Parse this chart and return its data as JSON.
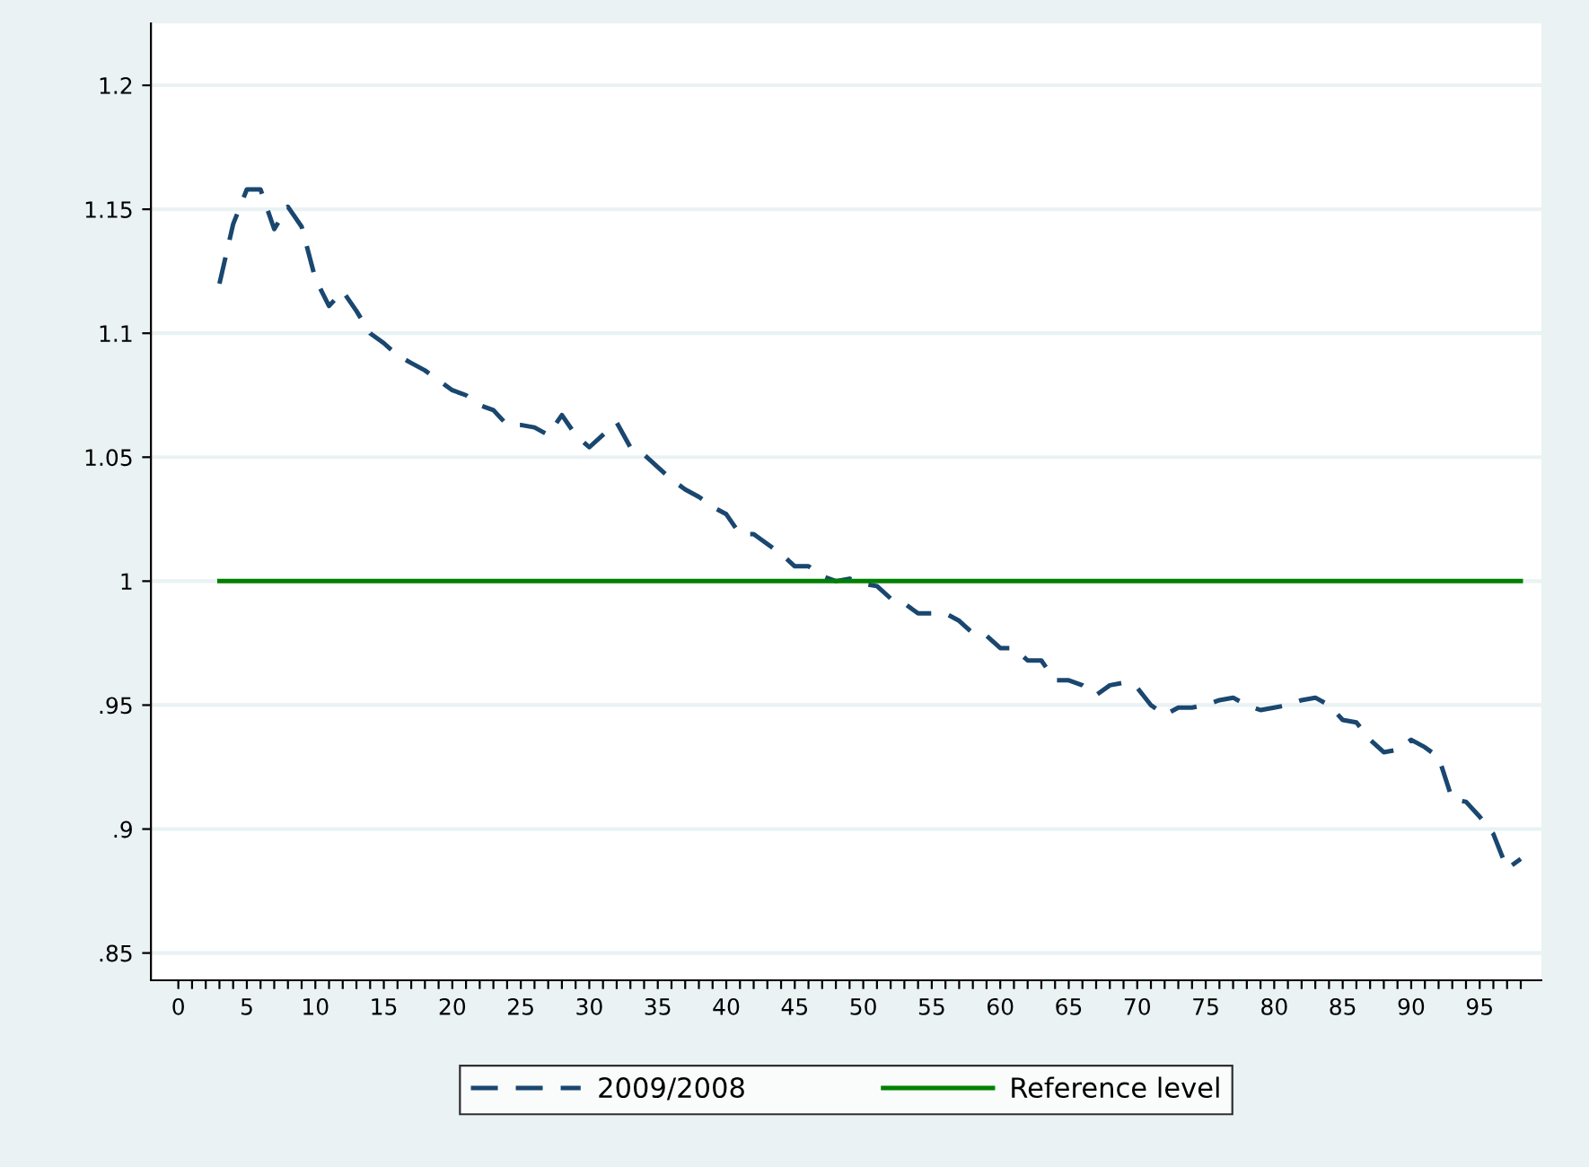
{
  "chart_data": {
    "type": "line",
    "x": [
      3,
      4,
      5,
      6,
      7,
      8,
      9,
      10,
      11,
      12,
      13,
      14,
      15,
      16,
      17,
      18,
      19,
      20,
      21,
      22,
      23,
      24,
      25,
      26,
      27,
      28,
      29,
      30,
      31,
      32,
      33,
      34,
      35,
      36,
      37,
      38,
      39,
      40,
      41,
      42,
      43,
      44,
      45,
      46,
      47,
      48,
      49,
      50,
      51,
      52,
      53,
      54,
      55,
      56,
      57,
      58,
      59,
      60,
      61,
      62,
      63,
      64,
      65,
      66,
      67,
      68,
      69,
      70,
      71,
      72,
      73,
      74,
      75,
      76,
      77,
      78,
      79,
      80,
      81,
      82,
      83,
      84,
      85,
      86,
      87,
      88,
      89,
      90,
      91,
      92,
      93,
      94,
      95,
      96,
      97,
      98
    ],
    "series": [
      {
        "name": "2009/2008",
        "color": "#1a476f",
        "line_style": "dashed",
        "values": [
          1.12,
          1.144,
          1.158,
          1.158,
          1.142,
          1.151,
          1.143,
          1.122,
          1.111,
          1.117,
          1.109,
          1.1,
          1.096,
          1.091,
          1.088,
          1.085,
          1.081,
          1.077,
          1.075,
          1.071,
          1.069,
          1.063,
          1.063,
          1.062,
          1.059,
          1.067,
          1.059,
          1.054,
          1.059,
          1.064,
          1.054,
          1.051,
          1.046,
          1.041,
          1.037,
          1.034,
          1.03,
          1.027,
          1.019,
          1.019,
          1.015,
          1.011,
          1.006,
          1.006,
          1.002,
          1.0,
          1.001,
          0.999,
          0.998,
          0.993,
          0.991,
          0.987,
          0.987,
          0.987,
          0.984,
          0.979,
          0.978,
          0.973,
          0.973,
          0.968,
          0.968,
          0.96,
          0.96,
          0.958,
          0.954,
          0.958,
          0.959,
          0.957,
          0.95,
          0.946,
          0.949,
          0.949,
          0.95,
          0.952,
          0.953,
          0.95,
          0.948,
          0.949,
          0.95,
          0.952,
          0.953,
          0.95,
          0.944,
          0.943,
          0.936,
          0.931,
          0.932,
          0.936,
          0.933,
          0.929,
          0.912,
          0.911,
          0.905,
          0.898,
          0.884,
          0.888
        ]
      },
      {
        "name": "Reference level",
        "color": "#008000",
        "line_style": "solid",
        "values": [
          1,
          1,
          1,
          1,
          1,
          1,
          1,
          1,
          1,
          1,
          1,
          1,
          1,
          1,
          1,
          1,
          1,
          1,
          1,
          1,
          1,
          1,
          1,
          1,
          1,
          1,
          1,
          1,
          1,
          1,
          1,
          1,
          1,
          1,
          1,
          1,
          1,
          1,
          1,
          1,
          1,
          1,
          1,
          1,
          1,
          1,
          1,
          1,
          1,
          1,
          1,
          1,
          1,
          1,
          1,
          1,
          1,
          1,
          1,
          1,
          1,
          1,
          1,
          1,
          1,
          1,
          1,
          1,
          1,
          1,
          1,
          1,
          1,
          1,
          1,
          1,
          1,
          1,
          1,
          1,
          1,
          1,
          1,
          1,
          1,
          1,
          1,
          1,
          1,
          1,
          1,
          1,
          1,
          1,
          1,
          1
        ]
      }
    ],
    "xlim": [
      -2,
      99.5
    ],
    "xticks": [
      0,
      {
        "value": 1,
        "label": null
      },
      {
        "value": 2,
        "label": null
      },
      {
        "value": 3,
        "label": null
      },
      {
        "value": 4,
        "label": null
      },
      5,
      {
        "value": 6,
        "label": null
      },
      {
        "value": 7,
        "label": null
      },
      {
        "value": 8,
        "label": null
      },
      {
        "value": 9,
        "label": null
      },
      10,
      {
        "value": 11,
        "label": null
      },
      {
        "value": 12,
        "label": null
      },
      {
        "value": 13,
        "label": null
      },
      {
        "value": 14,
        "label": null
      },
      15,
      {
        "value": 16,
        "label": null
      },
      {
        "value": 17,
        "label": null
      },
      {
        "value": 18,
        "label": null
      },
      {
        "value": 19,
        "label": null
      },
      20,
      {
        "value": 21,
        "label": null
      },
      {
        "value": 22,
        "label": null
      },
      {
        "value": 23,
        "label": null
      },
      {
        "value": 24,
        "label": null
      },
      25,
      {
        "value": 26,
        "label": null
      },
      {
        "value": 27,
        "label": null
      },
      {
        "value": 28,
        "label": null
      },
      {
        "value": 29,
        "label": null
      },
      30,
      {
        "value": 31,
        "label": null
      },
      {
        "value": 32,
        "label": null
      },
      {
        "value": 33,
        "label": null
      },
      {
        "value": 34,
        "label": null
      },
      35,
      {
        "value": 36,
        "label": null
      },
      {
        "value": 37,
        "label": null
      },
      {
        "value": 38,
        "label": null
      },
      {
        "value": 39,
        "label": null
      },
      40,
      {
        "value": 41,
        "label": null
      },
      {
        "value": 42,
        "label": null
      },
      {
        "value": 43,
        "label": null
      },
      {
        "value": 44,
        "label": null
      },
      45,
      {
        "value": 46,
        "label": null
      },
      {
        "value": 47,
        "label": null
      },
      {
        "value": 48,
        "label": null
      },
      {
        "value": 49,
        "label": null
      },
      50,
      {
        "value": 51,
        "label": null
      },
      {
        "value": 52,
        "label": null
      },
      {
        "value": 53,
        "label": null
      },
      {
        "value": 54,
        "label": null
      },
      55,
      {
        "value": 56,
        "label": null
      },
      {
        "value": 57,
        "label": null
      },
      {
        "value": 58,
        "label": null
      },
      {
        "value": 59,
        "label": null
      },
      60,
      {
        "value": 61,
        "label": null
      },
      {
        "value": 62,
        "label": null
      },
      {
        "value": 63,
        "label": null
      },
      {
        "value": 64,
        "label": null
      },
      65,
      {
        "value": 66,
        "label": null
      },
      {
        "value": 67,
        "label": null
      },
      {
        "value": 68,
        "label": null
      },
      {
        "value": 69,
        "label": null
      },
      70,
      {
        "value": 71,
        "label": null
      },
      {
        "value": 72,
        "label": null
      },
      {
        "value": 73,
        "label": null
      },
      {
        "value": 74,
        "label": null
      },
      75,
      {
        "value": 76,
        "label": null
      },
      {
        "value": 77,
        "label": null
      },
      {
        "value": 78,
        "label": null
      },
      {
        "value": 79,
        "label": null
      },
      80,
      {
        "value": 81,
        "label": null
      },
      {
        "value": 82,
        "label": null
      },
      {
        "value": 83,
        "label": null
      },
      {
        "value": 84,
        "label": null
      },
      85,
      {
        "value": 86,
        "label": null
      },
      {
        "value": 87,
        "label": null
      },
      {
        "value": 88,
        "label": null
      },
      {
        "value": 89,
        "label": null
      },
      90,
      {
        "value": 91,
        "label": null
      },
      {
        "value": 92,
        "label": null
      },
      {
        "value": 93,
        "label": null
      },
      {
        "value": 94,
        "label": null
      },
      95,
      {
        "value": 96,
        "label": null
      },
      {
        "value": 97,
        "label": null
      },
      {
        "value": 98,
        "label": null
      }
    ],
    "ylim": [
      0.839,
      1.225
    ],
    "yticks": [
      {
        "value": 0.85,
        "label": ".85"
      },
      {
        "value": 0.9,
        "label": ".9"
      },
      {
        "value": 0.95,
        "label": ".95"
      },
      1,
      1.05,
      1.1,
      1.15,
      1.2
    ],
    "grid": "y",
    "legend": "bottom"
  }
}
